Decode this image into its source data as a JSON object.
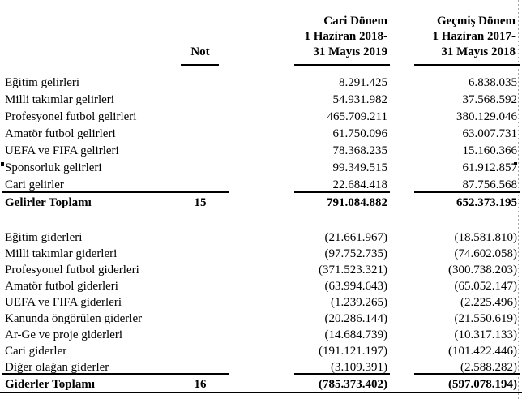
{
  "page": {
    "background": "#ffffff",
    "gridline_color": "#a8a8a8",
    "text_color": "#000000"
  },
  "header": {
    "not_label": "Not",
    "current_period": "Cari Dönem\n1 Haziran 2018-\n31 Mayıs 2019",
    "previous_period": "Geçmiş Dönem\n1 Haziran 2017-\n31 Mayıs 2018"
  },
  "income": {
    "rows": [
      {
        "label": "Eğitim gelirleri",
        "current": "8.291.425",
        "previous": "6.838.035"
      },
      {
        "label": "Milli takımlar gelirleri",
        "current": "54.931.982",
        "previous": "37.568.592"
      },
      {
        "label": "Profesyonel futbol gelirleri",
        "current": "465.709.211",
        "previous": "380.129.046"
      },
      {
        "label": "Amatör futbol gelirleri",
        "current": "61.750.096",
        "previous": "63.007.731"
      },
      {
        "label": "UEFA ve FIFA gelirleri",
        "current": "78.368.235",
        "previous": "15.160.366"
      },
      {
        "label": "Sponsorluk gelirleri",
        "current": "99.349.515",
        "previous": "61.912.857"
      },
      {
        "label": "Cari gelirler",
        "current": "22.684.418",
        "previous": "87.756.568"
      }
    ],
    "total": {
      "label": "Gelirler Toplamı",
      "not": "15",
      "current": "791.084.882",
      "previous": "652.373.195"
    }
  },
  "expenses": {
    "rows": [
      {
        "label": "Eğitim giderleri",
        "current": "(21.661.967)",
        "previous": "(18.581.810)"
      },
      {
        "label": "Milli takımlar giderleri",
        "current": "(97.752.735)",
        "previous": "(74.602.058)"
      },
      {
        "label": "Profesyonel futbol giderleri",
        "current": "(371.523.321)",
        "previous": "(300.738.203)"
      },
      {
        "label": "Amatör futbol giderleri",
        "current": "(63.994.643)",
        "previous": "(65.052.147)"
      },
      {
        "label": "UEFA ve FIFA giderleri",
        "current": "(1.239.265)",
        "previous": "(2.225.496)"
      },
      {
        "label": "Kanunda öngörülen giderler",
        "current": "(20.286.144)",
        "previous": "(21.550.619)"
      },
      {
        "label": "Ar-Ge ve proje giderleri",
        "current": "(14.684.739)",
        "previous": "(10.317.133)"
      },
      {
        "label": "Cari giderler",
        "current": "(191.121.197)",
        "previous": "(101.422.446)"
      },
      {
        "label": "Diğer olağan giderler",
        "current": "(3.109.391)",
        "previous": "(2.588.282)"
      }
    ],
    "total": {
      "label": "Giderler Toplamı",
      "not": "16",
      "current": "(785.373.402)",
      "previous": "(597.078.194)"
    }
  },
  "marks": {
    "sponsor_row_left": "black-square",
    "sponsor_row_right": "black-square"
  }
}
